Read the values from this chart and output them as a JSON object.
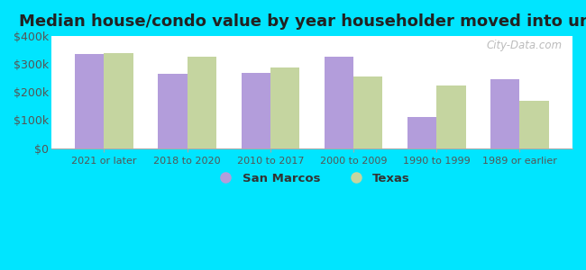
{
  "title": "Median house/condo value by year householder moved into unit",
  "categories": [
    "2021 or later",
    "2018 to 2020",
    "2010 to 2017",
    "2000 to 2009",
    "1990 to 1999",
    "1989 or earlier"
  ],
  "san_marcos": [
    335000,
    265000,
    270000,
    325000,
    110000,
    245000
  ],
  "texas": [
    340000,
    325000,
    287000,
    255000,
    225000,
    170000
  ],
  "color_san_marcos": "#b39ddb",
  "color_texas": "#c5d5a0",
  "background_outer": "#00e5ff",
  "background_inner_top": "#e8f5e9",
  "background_inner_bottom": "#ffffff",
  "ylim": [
    0,
    400000
  ],
  "yticks": [
    0,
    100000,
    200000,
    300000,
    400000
  ],
  "ytick_labels": [
    "$0",
    "$100k",
    "$200k",
    "$300k",
    "$400k"
  ],
  "legend_san_marcos": "San Marcos",
  "legend_texas": "Texas",
  "bar_width": 0.35,
  "watermark": "City-Data.com",
  "title_fontsize": 13,
  "tick_fontsize": 9,
  "xtick_fontsize": 8
}
